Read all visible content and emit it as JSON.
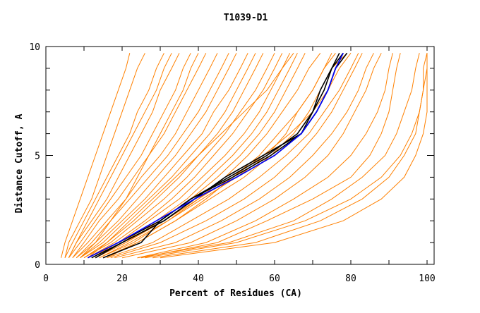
{
  "chart_data": {
    "type": "line",
    "title": "T1039-D1",
    "xlabel": "Percent of Residues (CA)",
    "ylabel": "Distance Cutoff, A",
    "xlim": [
      0,
      100
    ],
    "ylim": [
      0,
      10
    ],
    "xticks": [
      0,
      20,
      40,
      60,
      80,
      100
    ],
    "yticks": [
      0,
      5,
      10
    ],
    "grid": false,
    "colors": {
      "orange": "#ff8000",
      "blue": "#0000ff",
      "black": "#000000"
    },
    "y_levels": [
      0.3,
      1,
      2,
      3,
      4,
      5,
      6,
      7,
      8,
      9,
      9.7
    ],
    "series": [
      {
        "color": "orange",
        "x": [
          4,
          5,
          7,
          9,
          11,
          13,
          15,
          17,
          19,
          21,
          22
        ]
      },
      {
        "color": "orange",
        "x": [
          5,
          6,
          9,
          12,
          14,
          16,
          18,
          20,
          22,
          24,
          26
        ]
      },
      {
        "color": "orange",
        "x": [
          5,
          7,
          10,
          13,
          16,
          19,
          22,
          24,
          27,
          29,
          31
        ]
      },
      {
        "color": "orange",
        "x": [
          6,
          8,
          12,
          16,
          19,
          22,
          25,
          28,
          30,
          33,
          35
        ]
      },
      {
        "color": "orange",
        "x": [
          6,
          9,
          13,
          17,
          21,
          25,
          28,
          31,
          34,
          36,
          38
        ]
      },
      {
        "color": "orange",
        "x": [
          7,
          10,
          14,
          19,
          23,
          27,
          31,
          34,
          37,
          40,
          42
        ]
      },
      {
        "color": "orange",
        "x": [
          7,
          11,
          16,
          21,
          25,
          30,
          34,
          37,
          40,
          43,
          45
        ]
      },
      {
        "color": "orange",
        "x": [
          8,
          12,
          17,
          22,
          27,
          32,
          36,
          40,
          43,
          46,
          48
        ]
      },
      {
        "color": "orange",
        "x": [
          8,
          13,
          19,
          24,
          29,
          34,
          38,
          42,
          45,
          48,
          50
        ]
      },
      {
        "color": "orange",
        "x": [
          9,
          14,
          20,
          26,
          31,
          36,
          41,
          44,
          48,
          51,
          53
        ]
      },
      {
        "color": "orange",
        "x": [
          9,
          15,
          21,
          27,
          33,
          38,
          43,
          47,
          50,
          53,
          55
        ]
      },
      {
        "color": "orange",
        "x": [
          10,
          16,
          23,
          29,
          35,
          40,
          45,
          49,
          52,
          55,
          57
        ]
      },
      {
        "color": "orange",
        "x": [
          10,
          17,
          24,
          31,
          37,
          42,
          47,
          51,
          55,
          58,
          60
        ]
      },
      {
        "color": "orange",
        "x": [
          11,
          18,
          26,
          33,
          39,
          44,
          49,
          53,
          57,
          60,
          62
        ]
      },
      {
        "color": "orange",
        "x": [
          12,
          19,
          27,
          35,
          41,
          47,
          52,
          56,
          59,
          62,
          64
        ]
      },
      {
        "color": "orange",
        "x": [
          12,
          20,
          29,
          37,
          43,
          49,
          54,
          58,
          61,
          64,
          66
        ]
      },
      {
        "color": "orange",
        "x": [
          13,
          21,
          30,
          38,
          45,
          51,
          56,
          60,
          63,
          66,
          68
        ]
      },
      {
        "color": "orange",
        "x": [
          14,
          23,
          32,
          40,
          47,
          53,
          58,
          62,
          66,
          69,
          72
        ]
      },
      {
        "color": "orange",
        "x": [
          15,
          24,
          34,
          42,
          49,
          56,
          61,
          66,
          70,
          73,
          75
        ]
      },
      {
        "color": "orange",
        "x": [
          9,
          13,
          17,
          21,
          24,
          27,
          30,
          33,
          36,
          38,
          40
        ]
      },
      {
        "color": "orange",
        "x": [
          6,
          8,
          11,
          14,
          17,
          20,
          23,
          26,
          29,
          31,
          33
        ]
      },
      {
        "color": "orange",
        "x": [
          11,
          16,
          22,
          28,
          34,
          40,
          46,
          52,
          58,
          62,
          65
        ]
      },
      {
        "color": "orange",
        "x": [
          14,
          22,
          32,
          41,
          50,
          58,
          63,
          66,
          70,
          73,
          76
        ]
      },
      {
        "color": "orange",
        "x": [
          16,
          24,
          34,
          43,
          52,
          59,
          65,
          69,
          72,
          75,
          79
        ]
      },
      {
        "color": "orange",
        "x": [
          13,
          21,
          31,
          40,
          49,
          57,
          64,
          70,
          74,
          77,
          80
        ]
      },
      {
        "color": "orange",
        "x": [
          25,
          45,
          58,
          70,
          80,
          85,
          88,
          90,
          91,
          92,
          93
        ]
      },
      {
        "color": "orange",
        "x": [
          24,
          48,
          65,
          75,
          83,
          89,
          92,
          94,
          96,
          97,
          98
        ]
      },
      {
        "color": "orange",
        "x": [
          28,
          55,
          72,
          83,
          90,
          94,
          97,
          98,
          99,
          100,
          100
        ]
      },
      {
        "color": "orange",
        "x": [
          30,
          60,
          78,
          88,
          94,
          97,
          99,
          100,
          100,
          100,
          100
        ]
      },
      {
        "color": "orange",
        "x": [
          26,
          50,
          68,
          80,
          88,
          93,
          96,
          98,
          99,
          99,
          100
        ]
      },
      {
        "color": "orange",
        "x": [
          24,
          42,
          55,
          65,
          74,
          80,
          84,
          87,
          89,
          90,
          91
        ]
      },
      {
        "color": "orange",
        "x": [
          20,
          38,
          50,
          60,
          68,
          74,
          78,
          81,
          84,
          86,
          88
        ]
      },
      {
        "color": "orange",
        "x": [
          18,
          34,
          46,
          56,
          64,
          70,
          75,
          79,
          82,
          84,
          86
        ]
      },
      {
        "color": "orange",
        "x": [
          17,
          30,
          42,
          52,
          60,
          66,
          71,
          75,
          78,
          81,
          83
        ]
      },
      {
        "color": "orange",
        "x": [
          16,
          28,
          38,
          48,
          56,
          63,
          69,
          73,
          77,
          80,
          82
        ]
      },
      {
        "color": "black",
        "x": [
          11,
          19,
          30,
          38,
          49,
          59,
          67,
          70,
          73,
          75,
          78
        ]
      },
      {
        "color": "black",
        "x": [
          13,
          20,
          31,
          39,
          50,
          60,
          67,
          71,
          74,
          76,
          78
        ]
      },
      {
        "color": "black",
        "x": [
          15,
          25,
          30,
          38,
          48,
          58,
          66,
          70,
          72,
          75,
          77
        ]
      },
      {
        "color": "black",
        "x": [
          12,
          20,
          31,
          39,
          47,
          57,
          67,
          71,
          74,
          76,
          79
        ]
      },
      {
        "color": "blue",
        "x": [
          11,
          19,
          29,
          39,
          50,
          60,
          67,
          71,
          74,
          76,
          78
        ]
      }
    ]
  }
}
